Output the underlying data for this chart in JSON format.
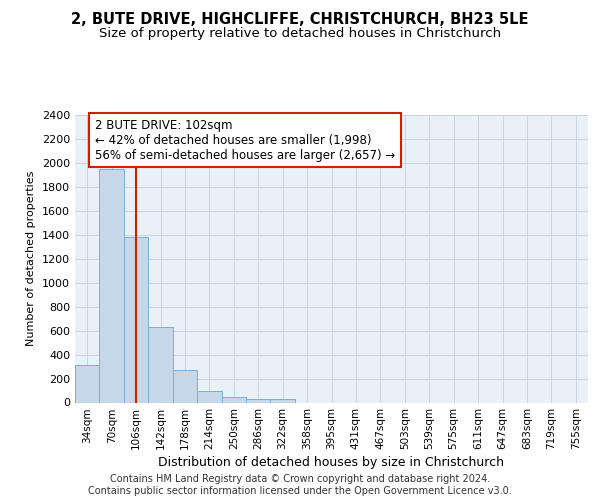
{
  "title_line1": "2, BUTE DRIVE, HIGHCLIFFE, CHRISTCHURCH, BH23 5LE",
  "title_line2": "Size of property relative to detached houses in Christchurch",
  "xlabel": "Distribution of detached houses by size in Christchurch",
  "ylabel": "Number of detached properties",
  "footer_line1": "Contains HM Land Registry data © Crown copyright and database right 2024.",
  "footer_line2": "Contains public sector information licensed under the Open Government Licence v3.0.",
  "annotation_line1": "2 BUTE DRIVE: 102sqm",
  "annotation_line2": "← 42% of detached houses are smaller (1,998)",
  "annotation_line3": "56% of semi-detached houses are larger (2,657) →",
  "categories": [
    "34sqm",
    "70sqm",
    "106sqm",
    "142sqm",
    "178sqm",
    "214sqm",
    "250sqm",
    "286sqm",
    "322sqm",
    "358sqm",
    "395sqm",
    "431sqm",
    "467sqm",
    "503sqm",
    "539sqm",
    "575sqm",
    "611sqm",
    "647sqm",
    "683sqm",
    "719sqm",
    "755sqm"
  ],
  "values": [
    310,
    1950,
    1380,
    630,
    270,
    100,
    48,
    32,
    28,
    0,
    0,
    0,
    0,
    0,
    0,
    0,
    0,
    0,
    0,
    0,
    0
  ],
  "bar_color": "#c5d8ea",
  "bar_edge_color": "#7bafd4",
  "bar_edge_width": 0.7,
  "vline_color": "#cc2200",
  "annotation_box_edgecolor": "#cc2200",
  "ylim_max": 2400,
  "ytick_step": 200,
  "grid_color": "#c8d4e0",
  "bg_color": "#eaf0f7",
  "title1_fontsize": 10.5,
  "title2_fontsize": 9.5,
  "ylabel_fontsize": 8,
  "xlabel_fontsize": 9,
  "tick_fontsize": 7.5,
  "annot_fontsize": 8.5,
  "footer_fontsize": 7
}
